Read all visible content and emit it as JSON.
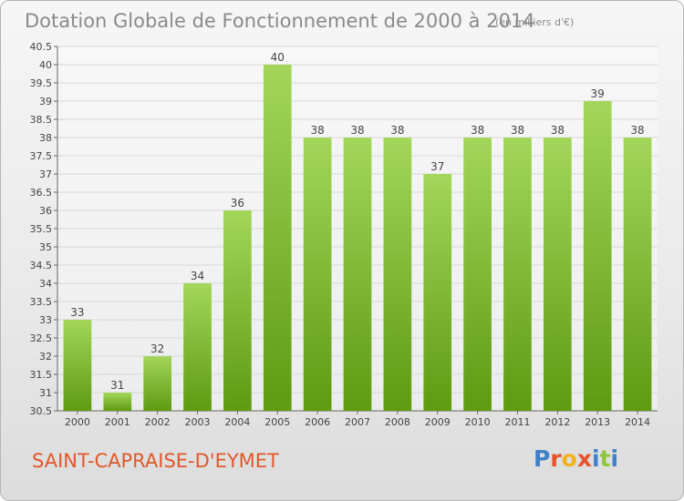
{
  "header": {
    "title": "Dotation Globale de Fonctionnement de 2000 à 2014",
    "subtitle": "(en milliers d'€)"
  },
  "footer": {
    "place": "SAINT-CAPRAISE-D'EYMET",
    "logo_letters": [
      "P",
      "r",
      "o",
      "x",
      "i",
      "t",
      "i"
    ]
  },
  "colors": {
    "bar_light": "#a3d65a",
    "bar_dark": "#5f9a12",
    "grid": "#d8d8d8",
    "place_text": "#e0582a",
    "logo": [
      "#3f80c8",
      "#e8522b",
      "#f2b21b",
      "#e8522b",
      "#3f80c8",
      "#8dc63f",
      "#3f80c8"
    ]
  },
  "chart_data": {
    "type": "bar",
    "title": "Dotation Globale de Fonctionnement de 2000 à 2014",
    "subtitle": "(en milliers d'€)",
    "categories": [
      "2000",
      "2001",
      "2002",
      "2003",
      "2004",
      "2005",
      "2006",
      "2007",
      "2008",
      "2009",
      "2010",
      "2011",
      "2012",
      "2013",
      "2014"
    ],
    "values": [
      33,
      31,
      32,
      34,
      36,
      40,
      38,
      38,
      38,
      37,
      38,
      38,
      38,
      39,
      38
    ],
    "ylim": [
      30.5,
      40.5
    ],
    "ytick_step": 0.5,
    "yticks": [
      "30.5",
      "31",
      "31.5",
      "32",
      "32.5",
      "33",
      "33.5",
      "34",
      "34.5",
      "35",
      "35.5",
      "36",
      "36.5",
      "37",
      "37.5",
      "38",
      "38.5",
      "39",
      "39.5",
      "40",
      "40.5"
    ],
    "grid": true,
    "data_labels": true
  }
}
